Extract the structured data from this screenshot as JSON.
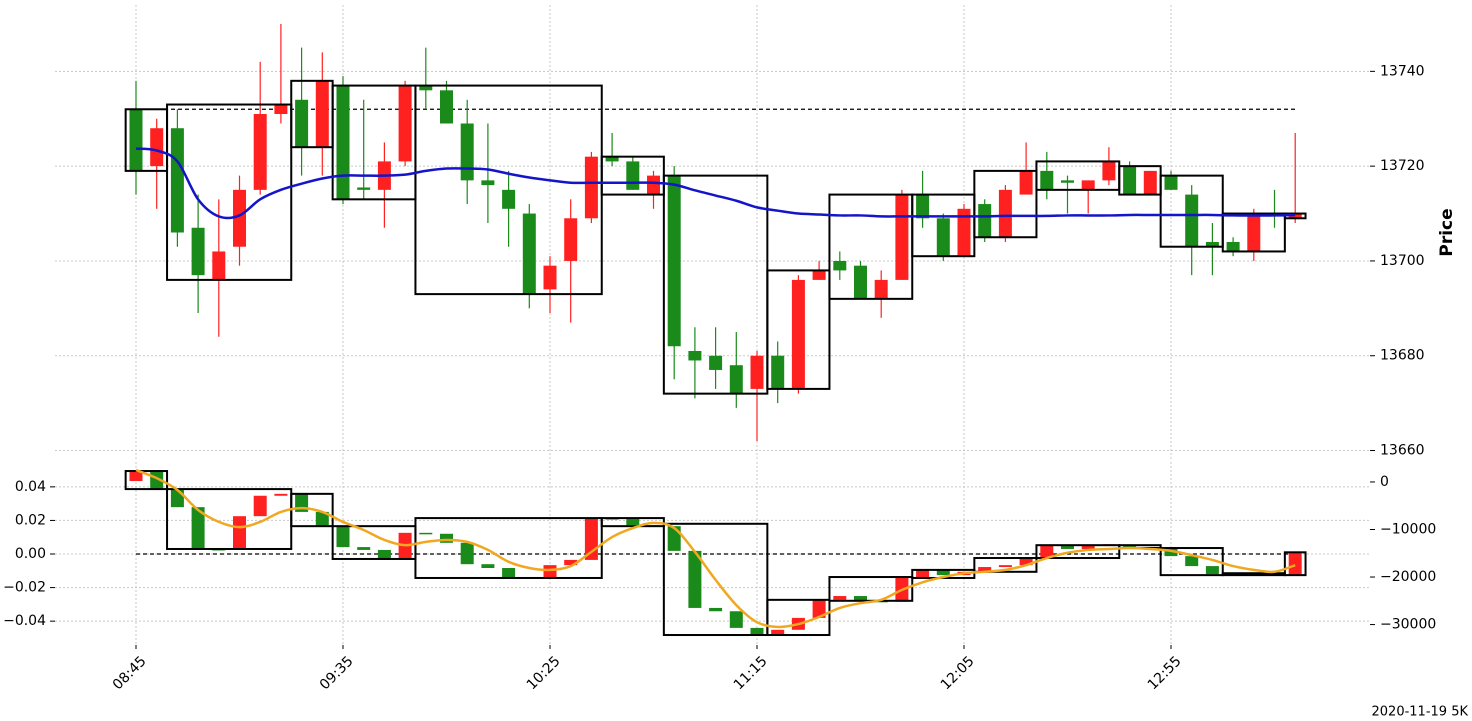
{
  "footnote": "2020-11-19 5K",
  "chart_data": [
    {
      "type": "candlestick",
      "ylabel": "Price",
      "y_side": "right",
      "grid": true,
      "up_color": "#ff2020",
      "down_color": "#1a8a1a",
      "box_color": "#000000",
      "line_color": "#1414c8",
      "categories": [
        "08:45",
        null,
        null,
        null,
        null,
        null,
        null,
        null,
        null,
        null,
        "09:35",
        null,
        null,
        null,
        null,
        null,
        null,
        null,
        null,
        null,
        "10:25",
        null,
        null,
        null,
        null,
        null,
        null,
        null,
        null,
        null,
        "11:15",
        null,
        null,
        null,
        null,
        null,
        null,
        null,
        null,
        null,
        "12:05",
        null,
        null,
        null,
        null,
        null,
        null,
        null,
        null,
        null,
        "12:55",
        null,
        null,
        null,
        null,
        null,
        null
      ],
      "ylim": [
        13658,
        13754
      ],
      "yticks": [
        13660,
        13680,
        13700,
        13720,
        13740
      ],
      "open": [
        13732,
        13720,
        13728,
        13707,
        13696,
        13703,
        13715,
        13731,
        13734,
        13724,
        13737,
        13715.5,
        13715,
        13721,
        13737,
        13736,
        13729,
        13717,
        13715,
        13710,
        13694,
        13700,
        13709,
        13722,
        13721,
        13714,
        13718,
        13681,
        13680,
        13678,
        13673,
        13680,
        13673,
        13696,
        13700,
        13699,
        13692,
        13696,
        13714,
        13709,
        13701,
        13712,
        13705,
        13714,
        13719,
        13717,
        13715,
        13717,
        13720,
        13714,
        13718,
        13714,
        13704,
        13704,
        13702,
        13710,
        13709
      ],
      "high": [
        13738,
        13730,
        13732,
        13714,
        13713,
        13718,
        13742,
        13750,
        13745,
        13744,
        13739,
        13734,
        13725,
        13738,
        13745,
        13738,
        13734,
        13729,
        13719,
        13712,
        13701,
        13713,
        13723,
        13727,
        13722,
        13719,
        13720,
        13686,
        13686,
        13685,
        13681,
        13683,
        13697,
        13700,
        13702,
        13700,
        13698,
        13715,
        13719,
        13710,
        13712,
        13713,
        13716,
        13725,
        13723,
        13718,
        13717,
        13724,
        13721,
        13719,
        13719,
        13716,
        13708,
        13705,
        13711,
        13715,
        13727
      ],
      "low": [
        13714,
        13711,
        13703,
        13689,
        13684,
        13699,
        13714,
        13729,
        13718,
        13718,
        13712,
        13713,
        13707,
        13720,
        13732,
        13729,
        13712,
        13708,
        13703,
        13690,
        13689,
        13687,
        13708,
        13720,
        13715,
        13711,
        13675,
        13671,
        13673,
        13669,
        13662,
        13670,
        13672,
        13696,
        13696,
        13692,
        13688,
        13696,
        13707,
        13700,
        13701,
        13704,
        13704,
        13714,
        13713,
        13710,
        13710,
        13716,
        13714,
        13714,
        13715,
        13697,
        13697,
        13701,
        13700,
        13707,
        13708
      ],
      "close": [
        13719,
        13728,
        13706,
        13697,
        13702,
        13715,
        13731,
        13733,
        13724,
        13738,
        13713,
        13715,
        13721,
        13737,
        13736,
        13729,
        13717,
        13716,
        13711,
        13693,
        13699,
        13709,
        13722,
        13721,
        13715,
        13718,
        13682,
        13679,
        13677,
        13672,
        13680,
        13673,
        13696,
        13698,
        13698,
        13692,
        13696,
        13714,
        13709,
        13701,
        13711,
        13705,
        13715,
        13719,
        13715,
        13716.5,
        13717,
        13721,
        13714,
        13719,
        13715,
        13703,
        13703,
        13702,
        13710,
        13709.5,
        13710
      ],
      "line": [
        13723.7,
        13723.3,
        13721,
        13713,
        13709.4,
        13709.6,
        13713,
        13715,
        13716.3,
        13717.4,
        13718,
        13718,
        13718,
        13718.2,
        13719,
        13719.5,
        13719.5,
        13719.3,
        13718.4,
        13717.6,
        13717,
        13716.5,
        13716.5,
        13716.5,
        13716.5,
        13716.5,
        13716.1,
        13714.9,
        13713.8,
        13712.7,
        13711.3,
        13710.6,
        13710,
        13709.8,
        13709.6,
        13709.6,
        13709.4,
        13709.4,
        13709.4,
        13709.4,
        13709.4,
        13709.4,
        13709.5,
        13709.5,
        13709.5,
        13709.6,
        13709.6,
        13709.6,
        13709.7,
        13709.7,
        13709.7,
        13709.7,
        13709.7,
        13709.6,
        13709.6,
        13709.6,
        13709.7
      ],
      "hline": 13732,
      "boxes": [
        {
          "start": 0,
          "end": 1,
          "top": 13732,
          "bottom": 13719
        },
        {
          "start": 2,
          "end": 7,
          "top": 13733,
          "bottom": 13696
        },
        {
          "start": 8,
          "end": 9,
          "top": 13738,
          "bottom": 13724
        },
        {
          "start": 10,
          "end": 13,
          "top": 13737,
          "bottom": 13713
        },
        {
          "start": 14,
          "end": 22,
          "top": 13737,
          "bottom": 13693
        },
        {
          "start": 23,
          "end": 25,
          "top": 13722,
          "bottom": 13714
        },
        {
          "start": 26,
          "end": 30,
          "top": 13718,
          "bottom": 13672
        },
        {
          "start": 31,
          "end": 33,
          "top": 13698,
          "bottom": 13673
        },
        {
          "start": 34,
          "end": 37,
          "top": 13714,
          "bottom": 13692
        },
        {
          "start": 38,
          "end": 40,
          "top": 13714,
          "bottom": 13701
        },
        {
          "start": 41,
          "end": 43,
          "top": 13719,
          "bottom": 13705
        },
        {
          "start": 44,
          "end": 47,
          "top": 13721,
          "bottom": 13715
        },
        {
          "start": 48,
          "end": 49,
          "top": 13720,
          "bottom": 13714
        },
        {
          "start": 50,
          "end": 52,
          "top": 13718,
          "bottom": 13703
        },
        {
          "start": 53,
          "end": 55,
          "top": 13710,
          "bottom": 13702
        },
        {
          "start": 56,
          "end": 56,
          "top": 13710,
          "bottom": 13709
        }
      ]
    },
    {
      "type": "candlestick",
      "y_side": "left",
      "axis": "y2",
      "grid": true,
      "up_color": "#ff2020",
      "down_color": "#1a8a1a",
      "box_color": "#000000",
      "line_color": "#f0a820",
      "ylim": [
        -0.0542,
        0.0548
      ],
      "yticks": [
        {
          "value": -0.04,
          "label": "−0.04"
        },
        {
          "value": -0.02,
          "label": "−0.02"
        },
        {
          "value": 0,
          "label": "0.00"
        },
        0.02,
        0.04
      ],
      "y2lim": [
        -34300,
        4200
      ],
      "y2ticks": [
        {
          "value": -30000,
          "label": "−30000"
        },
        {
          "value": -20000,
          "label": "−20000"
        },
        {
          "value": -10000,
          "label": "−10000"
        },
        0
      ],
      "open": [
        200,
        2300,
        -1500,
        -5300,
        -14100,
        -14300,
        -7200,
        -2900,
        -2500,
        -6300,
        -9300,
        -13700,
        -14300,
        -16200,
        -10700,
        -10900,
        -12800,
        -17300,
        -18100,
        -20000,
        -20200,
        -17500,
        -16400,
        -7600,
        -7800,
        -9100,
        -9300,
        -14500,
        -26500,
        -27200,
        -30700,
        -32200,
        -31100,
        -28600,
        -24800,
        -24000,
        -25000,
        -25200,
        -20000,
        -18500,
        -19600,
        -18900,
        -17900,
        -17500,
        -16000,
        -13300,
        -14100,
        -13300,
        -13300,
        -13700,
        -13900,
        -15600,
        -17700,
        -19400,
        -19600,
        -19200,
        -19600
      ],
      "close": [
        2300,
        -1500,
        -5300,
        -14100,
        -14300,
        -7200,
        -2900,
        -2500,
        -6300,
        -9300,
        -13700,
        -14300,
        -16200,
        -10700,
        -10900,
        -12800,
        -17300,
        -18100,
        -20000,
        -20200,
        -17500,
        -16400,
        -7600,
        -7800,
        -9100,
        -9300,
        -14500,
        -26500,
        -27200,
        -30700,
        -32200,
        -31100,
        -28600,
        -24800,
        -24000,
        -25000,
        -25200,
        -20000,
        -18500,
        -19600,
        -18900,
        -17900,
        -17500,
        -16000,
        -13300,
        -14100,
        -13300,
        -13100,
        -13700,
        -13900,
        -15600,
        -17700,
        -19400,
        -19600,
        -19200,
        -19600,
        -14800
      ],
      "line": [
        2500,
        800,
        -1700,
        -5900,
        -8400,
        -9500,
        -8400,
        -6300,
        -5500,
        -6300,
        -8400,
        -10100,
        -12200,
        -13300,
        -12600,
        -12200,
        -12600,
        -14300,
        -16800,
        -18100,
        -18500,
        -17700,
        -14700,
        -11600,
        -9700,
        -8600,
        -9700,
        -14700,
        -20600,
        -25900,
        -29500,
        -30500,
        -29900,
        -28400,
        -26500,
        -25500,
        -24800,
        -22700,
        -21100,
        -20000,
        -19200,
        -18900,
        -18500,
        -17500,
        -16000,
        -14900,
        -14300,
        -14100,
        -13900,
        -14100,
        -14500,
        -15400,
        -16400,
        -17700,
        -18500,
        -18900,
        -17500
      ],
      "hline": 0,
      "boxes": [
        {
          "start": 0,
          "end": 1,
          "top": 2300,
          "bottom": -1500
        },
        {
          "start": 2,
          "end": 7,
          "top": -1500,
          "bottom": -14100
        },
        {
          "start": 8,
          "end": 9,
          "top": -2500,
          "bottom": -9300
        },
        {
          "start": 10,
          "end": 13,
          "top": -9300,
          "bottom": -16200
        },
        {
          "start": 14,
          "end": 22,
          "top": -7600,
          "bottom": -20200
        },
        {
          "start": 23,
          "end": 25,
          "top": -7600,
          "bottom": -9300
        },
        {
          "start": 26,
          "end": 30,
          "top": -8800,
          "bottom": -32200
        },
        {
          "start": 31,
          "end": 33,
          "top": -24800,
          "bottom": -32200
        },
        {
          "start": 34,
          "end": 37,
          "top": -20000,
          "bottom": -25000
        },
        {
          "start": 38,
          "end": 40,
          "top": -18500,
          "bottom": -20200
        },
        {
          "start": 41,
          "end": 43,
          "top": -16000,
          "bottom": -18900
        },
        {
          "start": 44,
          "end": 47,
          "top": -13300,
          "bottom": -16000
        },
        {
          "start": 48,
          "end": 49,
          "top": -13300,
          "bottom": -13900
        },
        {
          "start": 50,
          "end": 52,
          "top": -13900,
          "bottom": -19600
        },
        {
          "start": 53,
          "end": 55,
          "top": -19200,
          "bottom": -19600
        },
        {
          "start": 56,
          "end": 56,
          "top": -14800,
          "bottom": -19600
        }
      ]
    }
  ]
}
